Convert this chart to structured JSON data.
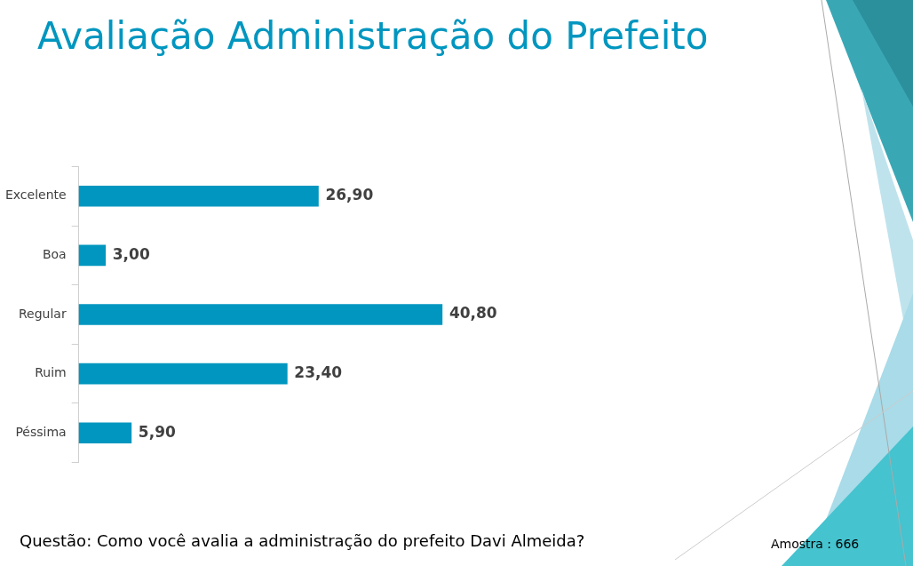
{
  "chart_data": {
    "type": "bar",
    "orientation": "horizontal",
    "title": "Avaliação Administração do Prefeito",
    "categories": [
      "Excelente",
      "Boa",
      "Regular",
      "Ruim",
      "Péssima"
    ],
    "values": [
      26.9,
      3.0,
      40.8,
      23.4,
      5.9
    ],
    "value_labels": [
      "26,90",
      "3,00",
      "40,80",
      "23,40",
      "5,90"
    ],
    "color": "#0096bf",
    "legend": false,
    "annotations": [
      "Questão: Como você avalia a administração do prefeito Davi Almeida?",
      "Amostra : 666"
    ]
  }
}
